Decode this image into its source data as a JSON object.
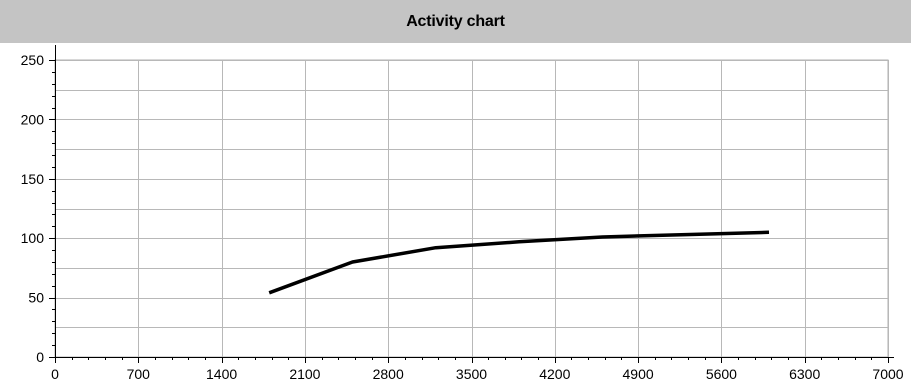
{
  "title": "Activity chart",
  "chart_data": {
    "type": "line",
    "title": "Activity chart",
    "xlabel": "",
    "ylabel": "",
    "xlim": [
      0,
      7000
    ],
    "ylim": [
      0,
      250
    ],
    "x_ticks": [
      0,
      700,
      1400,
      2100,
      2800,
      3500,
      4200,
      4900,
      5600,
      6300,
      7000
    ],
    "y_ticks": [
      0,
      50,
      100,
      150,
      200,
      250
    ],
    "x_minor_step": 140,
    "y_minor_step": 10,
    "grid": true,
    "legend": "none",
    "series": [
      {
        "color": "#000000",
        "x": [
          1800,
          2500,
          3200,
          3900,
          4600,
          5300,
          6000
        ],
        "y": [
          54,
          80,
          92,
          97,
          101,
          103,
          105
        ]
      }
    ]
  }
}
